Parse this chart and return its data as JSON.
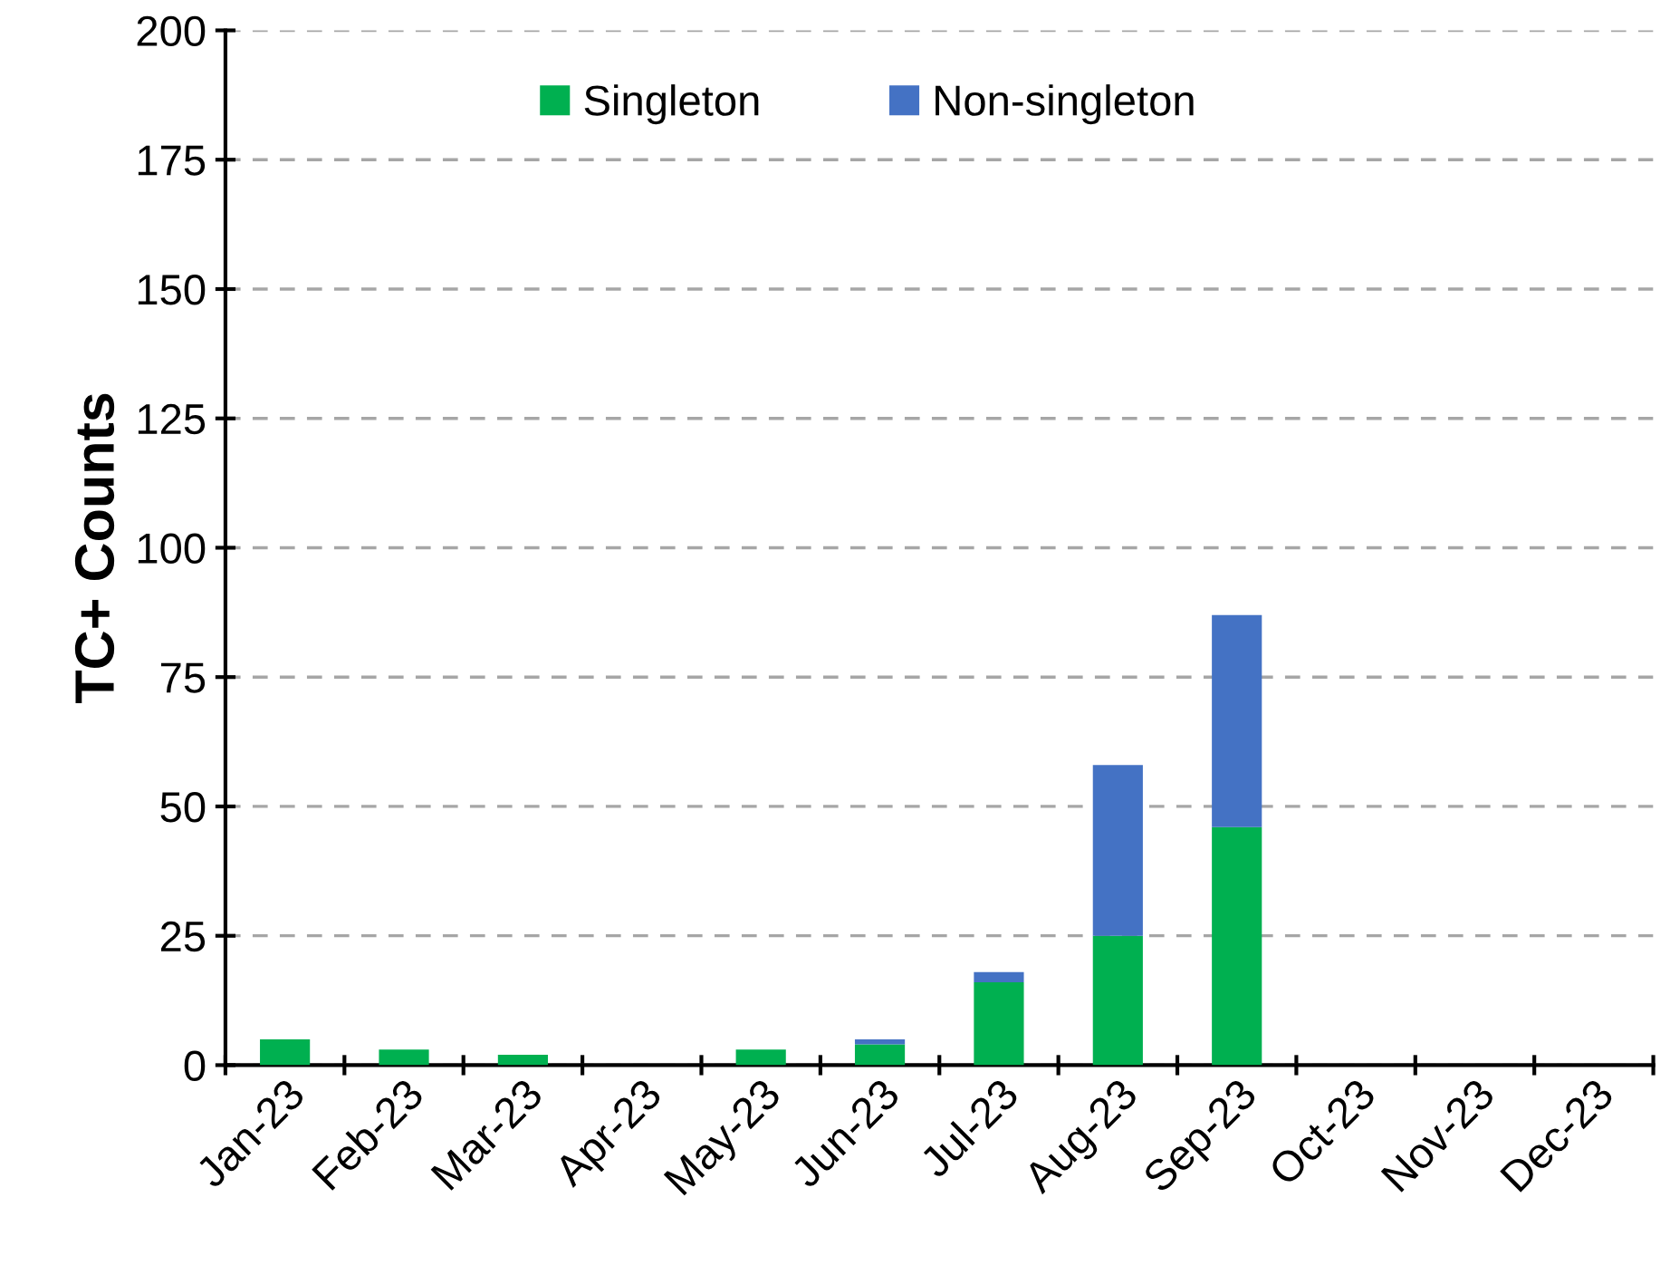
{
  "chart_data": {
    "type": "bar",
    "stacked": true,
    "ylabel": "TC+ Counts",
    "categories": [
      "Jan-23",
      "Feb-23",
      "Mar-23",
      "Apr-23",
      "May-23",
      "Jun-23",
      "Jul-23",
      "Aug-23",
      "Sep-23",
      "Oct-23",
      "Nov-23",
      "Dec-23"
    ],
    "series": [
      {
        "name": "Singleton",
        "color": "#00b050",
        "values": [
          5,
          3,
          2,
          0,
          3,
          4,
          16,
          25,
          46,
          0,
          0,
          0
        ]
      },
      {
        "name": "Non-singleton",
        "color": "#4472c4",
        "values": [
          0,
          0,
          0,
          0,
          0,
          1,
          2,
          33,
          41,
          0,
          0,
          0
        ]
      }
    ],
    "ylim": [
      0,
      200
    ],
    "yticks": [
      0,
      25,
      50,
      75,
      100,
      125,
      150,
      175,
      200
    ],
    "grid": "y",
    "legend": "top"
  }
}
